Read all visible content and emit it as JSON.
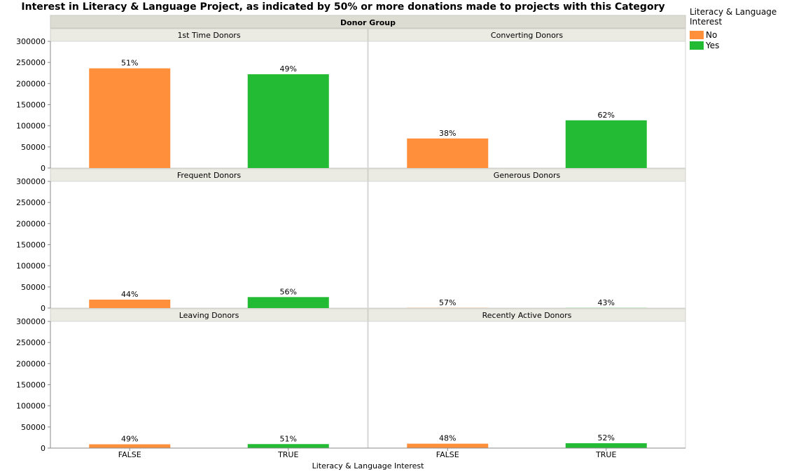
{
  "chart_data": {
    "type": "bar",
    "title": "Interest in Literacy & Language Project, as indicated by 50% or more donations made to projects with this Category",
    "group_header": "Donor Group",
    "xlabel": "Literacy & Language Interest",
    "ylabel": "",
    "categories": [
      "FALSE",
      "TRUE"
    ],
    "ylim": [
      0,
      300000
    ],
    "yticks": [
      0,
      50000,
      100000,
      150000,
      200000,
      250000,
      300000
    ],
    "legend": {
      "title": "Literacy & Language Interest",
      "entries": [
        {
          "label": "No",
          "color": "#FF8F3A"
        },
        {
          "label": "Yes",
          "color": "#22BB33"
        }
      ],
      "placement": "right"
    },
    "panels": [
      {
        "name": "1st Time Donors",
        "values": [
          236000,
          222000
        ],
        "labels": [
          "51%",
          "49%"
        ]
      },
      {
        "name": "Converting Donors",
        "values": [
          70000,
          113000
        ],
        "labels": [
          "38%",
          "62%"
        ]
      },
      {
        "name": "Frequent Donors",
        "values": [
          20000,
          26000
        ],
        "labels": [
          "44%",
          "56%"
        ]
      },
      {
        "name": "Generous Donors",
        "values": [
          400,
          300
        ],
        "labels": [
          "57%",
          "43%"
        ]
      },
      {
        "name": "Leaving Donors",
        "values": [
          9000,
          9500
        ],
        "labels": [
          "49%",
          "51%"
        ]
      },
      {
        "name": "Recently Active Donors",
        "values": [
          10500,
          11500
        ],
        "labels": [
          "48%",
          "52%"
        ]
      }
    ],
    "grid": false
  }
}
